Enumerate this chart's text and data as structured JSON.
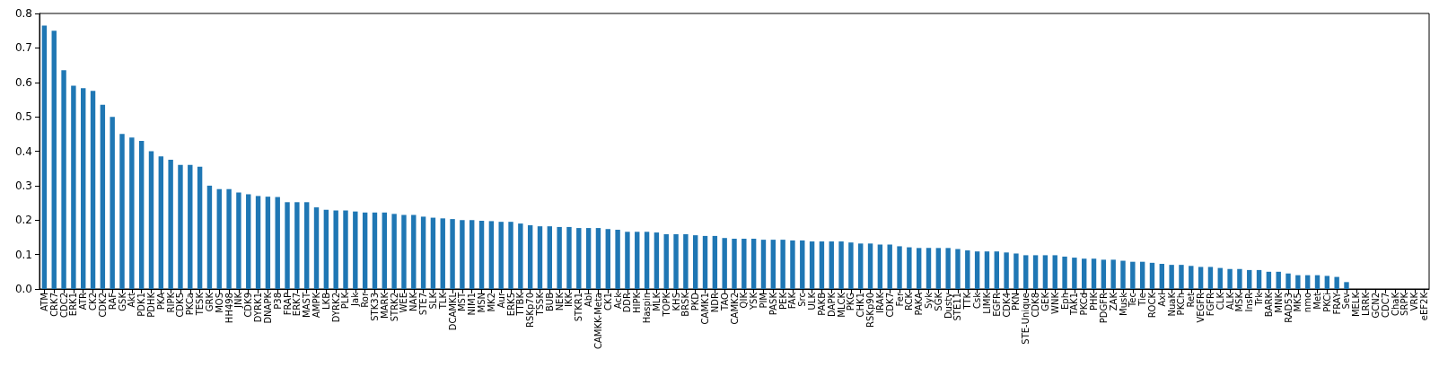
{
  "chart_data": {
    "type": "bar",
    "color": "#1f77b4",
    "grid": false,
    "categories": [
      "ATM",
      "CRK7",
      "CDC2",
      "ERK1",
      "ATR",
      "CK2",
      "CDK2",
      "RAF",
      "GSK",
      "Akt",
      "PDK1",
      "PDHK",
      "PKA",
      "RIPK",
      "CDK5",
      "PKCa",
      "TESK",
      "GRK",
      "MOS",
      "HH498",
      "JNK",
      "CDK9",
      "DYRK1",
      "DNAPK",
      "P38",
      "FRAP",
      "ERK7",
      "MAST",
      "AMPK",
      "LKB",
      "DYRK2",
      "PLK",
      "Jak",
      "Ror",
      "STK33",
      "MARK",
      "STRK2",
      "WEE",
      "NAK",
      "STE7",
      "SLK",
      "TLK",
      "DCAMKL",
      "MST",
      "NIM1",
      "MSN",
      "MK2",
      "Aur",
      "ERK5",
      "TTBK",
      "RSKp70",
      "TSSK",
      "BUB",
      "NEK",
      "IKK",
      "STKR1",
      "Abl",
      "CAMKK-Meta",
      "CK1",
      "Ack",
      "DDR",
      "HIPK",
      "Haspin",
      "MLK",
      "TOPK",
      "KHS",
      "BRSK",
      "PKD",
      "CAMK1",
      "NDR",
      "TAO",
      "CAMK2",
      "QIK",
      "YSK",
      "PIM",
      "PASK",
      "PEK",
      "FAK",
      "Src",
      "ULK",
      "PAKB",
      "DAPK",
      "MLCK",
      "PKG",
      "CHK1",
      "RSKp90",
      "IRAK",
      "CDK7",
      "Fer",
      "RCK",
      "PAKA",
      "Syk",
      "SGK",
      "Dusty",
      "STE11",
      "TTK",
      "Csk",
      "LIMK",
      "EGFR",
      "CDK4",
      "PKN",
      "STE-Unique",
      "CDK8",
      "GEK",
      "WNK",
      "Eph",
      "TAK1",
      "PKCd",
      "PHK",
      "PDGFR",
      "ZAK",
      "Musk",
      "Tec",
      "Tie",
      "ROCK",
      "Axl",
      "NuaK",
      "PKCh",
      "Ret",
      "VEGFR",
      "FGFR",
      "CLK",
      "ALK",
      "MSK",
      "InsR",
      "Trk",
      "BARK",
      "MNK",
      "RAD53",
      "MK5",
      "nmo",
      "Met",
      "PKCi",
      "FRAY",
      "Sev",
      "MELK",
      "LRRK",
      "GCN2",
      "CDC7",
      "ChaK",
      "SRPK",
      "VRK",
      "eEF2K"
    ],
    "values": [
      0.765,
      0.75,
      0.635,
      0.59,
      0.583,
      0.575,
      0.535,
      0.5,
      0.45,
      0.44,
      0.43,
      0.4,
      0.385,
      0.375,
      0.36,
      0.36,
      0.355,
      0.3,
      0.29,
      0.29,
      0.28,
      0.275,
      0.27,
      0.268,
      0.267,
      0.252,
      0.252,
      0.252,
      0.237,
      0.23,
      0.228,
      0.228,
      0.225,
      0.222,
      0.222,
      0.222,
      0.218,
      0.215,
      0.215,
      0.21,
      0.207,
      0.205,
      0.203,
      0.2,
      0.2,
      0.198,
      0.197,
      0.195,
      0.195,
      0.19,
      0.185,
      0.182,
      0.182,
      0.18,
      0.18,
      0.177,
      0.177,
      0.177,
      0.174,
      0.172,
      0.166,
      0.166,
      0.166,
      0.164,
      0.159,
      0.159,
      0.159,
      0.156,
      0.154,
      0.154,
      0.148,
      0.146,
      0.146,
      0.146,
      0.143,
      0.143,
      0.143,
      0.141,
      0.141,
      0.138,
      0.138,
      0.138,
      0.138,
      0.135,
      0.132,
      0.132,
      0.129,
      0.129,
      0.124,
      0.121,
      0.119,
      0.119,
      0.119,
      0.119,
      0.116,
      0.112,
      0.109,
      0.109,
      0.109,
      0.106,
      0.103,
      0.098,
      0.098,
      0.098,
      0.098,
      0.094,
      0.091,
      0.088,
      0.088,
      0.085,
      0.085,
      0.082,
      0.079,
      0.079,
      0.076,
      0.073,
      0.07,
      0.07,
      0.067,
      0.064,
      0.064,
      0.061,
      0.058,
      0.058,
      0.055,
      0.055,
      0.05,
      0.05,
      0.045,
      0.04,
      0.04,
      0.04,
      0.038,
      0.035,
      0.02,
      0,
      0,
      0,
      0,
      0,
      0,
      0,
      0
    ],
    "ylim": [
      0,
      0.8
    ],
    "yticks": [
      {
        "value": 0,
        "label": "0.0"
      },
      0.1,
      0.2,
      0.3,
      0.4,
      0.5,
      0.6,
      0.7,
      0.8
    ]
  }
}
